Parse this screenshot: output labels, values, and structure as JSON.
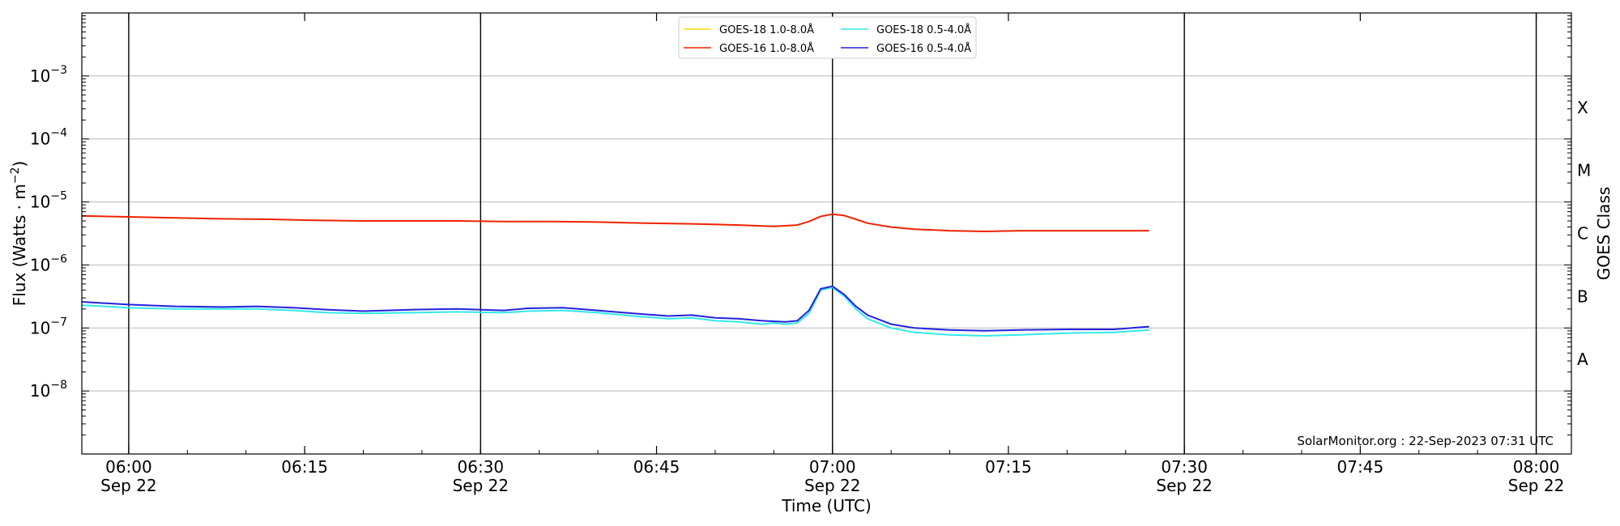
{
  "chart_data": {
    "type": "line",
    "ylabel_main": "Flux (Watts · m",
    "ylabel_sup": "−2",
    "ylabel_close": ")",
    "xlabel": "Time (UTC)",
    "right_label": "GOES Class",
    "yscale": "log",
    "ylim": [
      1e-09,
      0.01
    ],
    "xlim": [
      "05:56:00",
      "08:03:00"
    ],
    "date": "Sep 22",
    "y_ticks": [
      {
        "value": 1e-08,
        "base": "10",
        "exp": "−8"
      },
      {
        "value": 1e-07,
        "base": "10",
        "exp": "−7"
      },
      {
        "value": 1e-06,
        "base": "10",
        "exp": "−6"
      },
      {
        "value": 1e-05,
        "base": "10",
        "exp": "−5"
      },
      {
        "value": 0.0001,
        "base": "10",
        "exp": "−4"
      },
      {
        "value": 0.001,
        "base": "10",
        "exp": "−3"
      }
    ],
    "x_ticks": [
      {
        "time": "06:00",
        "label": "06:00",
        "date": "Sep 22"
      },
      {
        "time": "06:15",
        "label": "06:15",
        "date": ""
      },
      {
        "time": "06:30",
        "label": "06:30",
        "date": "Sep 22"
      },
      {
        "time": "06:45",
        "label": "06:45",
        "date": ""
      },
      {
        "time": "07:00",
        "label": "07:00",
        "date": "Sep 22"
      },
      {
        "time": "07:15",
        "label": "07:15",
        "date": ""
      },
      {
        "time": "07:30",
        "label": "07:30",
        "date": "Sep 22"
      },
      {
        "time": "07:45",
        "label": "07:45",
        "date": ""
      },
      {
        "time": "08:00",
        "label": "08:00",
        "date": "Sep 22"
      }
    ],
    "vertical_lines": [
      "06:00",
      "06:30",
      "07:00",
      "07:30",
      "08:00"
    ],
    "goes_classes": [
      {
        "label": "A",
        "value": 3.16e-08
      },
      {
        "label": "B",
        "value": 3.16e-07
      },
      {
        "label": "C",
        "value": 3.16e-06
      },
      {
        "label": "M",
        "value": 3.16e-05
      },
      {
        "label": "X",
        "value": 0.000316
      }
    ],
    "watermark": "SolarMonitor.org : 22-Sep-2023 07:31 UTC",
    "legend_position": "top-center",
    "series": [
      {
        "name": "GOES-18 1.0-8.0Å",
        "color": "#ffd700",
        "points": []
      },
      {
        "name": "GOES-16 1.0-8.0Å",
        "color": "#ee2200",
        "points": [
          [
            "05:56",
            6e-06
          ],
          [
            "06:00",
            5.8e-06
          ],
          [
            "06:04",
            5.6e-06
          ],
          [
            "06:08",
            5.4e-06
          ],
          [
            "06:12",
            5.3e-06
          ],
          [
            "06:16",
            5.1e-06
          ],
          [
            "06:20",
            5e-06
          ],
          [
            "06:24",
            5e-06
          ],
          [
            "06:28",
            5e-06
          ],
          [
            "06:32",
            4.9e-06
          ],
          [
            "06:36",
            4.9e-06
          ],
          [
            "06:40",
            4.8e-06
          ],
          [
            "06:44",
            4.6e-06
          ],
          [
            "06:48",
            4.5e-06
          ],
          [
            "06:52",
            4.3e-06
          ],
          [
            "06:55",
            4.1e-06
          ],
          [
            "06:57",
            4.3e-06
          ],
          [
            "06:58",
            4.9e-06
          ],
          [
            "06:59",
            5.9e-06
          ],
          [
            "07:00",
            6.4e-06
          ],
          [
            "07:01",
            6.1e-06
          ],
          [
            "07:02",
            5.3e-06
          ],
          [
            "07:03",
            4.6e-06
          ],
          [
            "07:05",
            4e-06
          ],
          [
            "07:07",
            3.7e-06
          ],
          [
            "07:10",
            3.5e-06
          ],
          [
            "07:13",
            3.4e-06
          ],
          [
            "07:16",
            3.5e-06
          ],
          [
            "07:20",
            3.5e-06
          ],
          [
            "07:24",
            3.5e-06
          ],
          [
            "07:27",
            3.5e-06
          ]
        ]
      },
      {
        "name": "GOES-18 0.5-4.0Å",
        "color": "#33e8e8",
        "points": [
          [
            "05:56",
            2.3e-07
          ],
          [
            "06:00",
            2.1e-07
          ],
          [
            "06:04",
            2e-07
          ],
          [
            "06:08",
            2e-07
          ],
          [
            "06:11",
            2e-07
          ],
          [
            "06:14",
            1.9e-07
          ],
          [
            "06:17",
            1.75e-07
          ],
          [
            "06:20",
            1.7e-07
          ],
          [
            "06:24",
            1.75e-07
          ],
          [
            "06:28",
            1.8e-07
          ],
          [
            "06:32",
            1.75e-07
          ],
          [
            "06:34",
            1.85e-07
          ],
          [
            "06:37",
            1.9e-07
          ],
          [
            "06:40",
            1.75e-07
          ],
          [
            "06:43",
            1.55e-07
          ],
          [
            "06:46",
            1.4e-07
          ],
          [
            "06:48",
            1.45e-07
          ],
          [
            "06:50",
            1.3e-07
          ],
          [
            "06:52",
            1.25e-07
          ],
          [
            "06:54",
            1.15e-07
          ],
          [
            "06:55",
            1.2e-07
          ],
          [
            "06:56",
            1.15e-07
          ],
          [
            "06:57",
            1.2e-07
          ],
          [
            "06:58",
            1.7e-07
          ],
          [
            "06:59",
            4e-07
          ],
          [
            "07:00",
            4.4e-07
          ],
          [
            "07:01",
            3.2e-07
          ],
          [
            "07:02",
            2e-07
          ],
          [
            "07:03",
            1.4e-07
          ],
          [
            "07:05",
            1e-07
          ],
          [
            "07:07",
            8.5e-08
          ],
          [
            "07:10",
            7.8e-08
          ],
          [
            "07:13",
            7.5e-08
          ],
          [
            "07:16",
            7.8e-08
          ],
          [
            "07:20",
            8.3e-08
          ],
          [
            "07:24",
            8.5e-08
          ],
          [
            "07:27",
            9.3e-08
          ]
        ]
      },
      {
        "name": "GOES-16 0.5-4.0Å",
        "color": "#2222dd",
        "points": [
          [
            "05:56",
            2.6e-07
          ],
          [
            "06:00",
            2.35e-07
          ],
          [
            "06:04",
            2.2e-07
          ],
          [
            "06:08",
            2.15e-07
          ],
          [
            "06:11",
            2.2e-07
          ],
          [
            "06:14",
            2.1e-07
          ],
          [
            "06:17",
            1.95e-07
          ],
          [
            "06:20",
            1.85e-07
          ],
          [
            "06:24",
            1.95e-07
          ],
          [
            "06:28",
            2e-07
          ],
          [
            "06:32",
            1.9e-07
          ],
          [
            "06:34",
            2.05e-07
          ],
          [
            "06:37",
            2.1e-07
          ],
          [
            "06:40",
            1.9e-07
          ],
          [
            "06:43",
            1.7e-07
          ],
          [
            "06:46",
            1.55e-07
          ],
          [
            "06:48",
            1.6e-07
          ],
          [
            "06:50",
            1.45e-07
          ],
          [
            "06:52",
            1.4e-07
          ],
          [
            "06:54",
            1.3e-07
          ],
          [
            "06:56",
            1.25e-07
          ],
          [
            "06:57",
            1.3e-07
          ],
          [
            "06:58",
            1.9e-07
          ],
          [
            "06:59",
            4.2e-07
          ],
          [
            "07:00",
            4.6e-07
          ],
          [
            "07:01",
            3.4e-07
          ],
          [
            "07:02",
            2.2e-07
          ],
          [
            "07:03",
            1.6e-07
          ],
          [
            "07:05",
            1.15e-07
          ],
          [
            "07:07",
            1e-07
          ],
          [
            "07:10",
            9.3e-08
          ],
          [
            "07:13",
            9e-08
          ],
          [
            "07:16",
            9.3e-08
          ],
          [
            "07:20",
            9.5e-08
          ],
          [
            "07:24",
            9.5e-08
          ],
          [
            "07:27",
            1.05e-07
          ]
        ]
      }
    ]
  }
}
